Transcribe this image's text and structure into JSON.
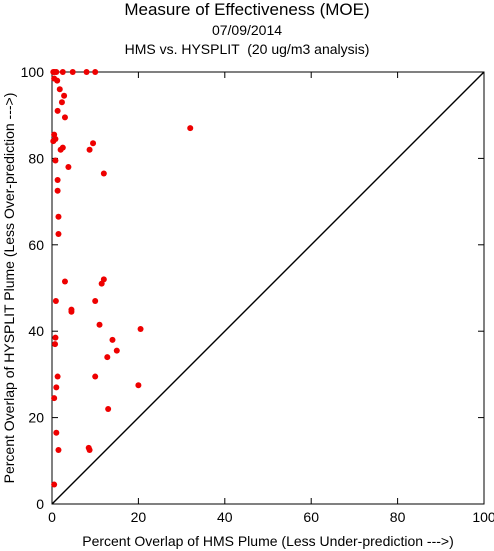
{
  "chart_data": {
    "type": "scatter",
    "title": "Measure of Effectiveness (MOE)",
    "subtitle_date": "07/09/2014",
    "subtitle": "HMS vs. HYSPLIT  (20 ug/m3 analysis)",
    "xlabel": "Percent Overlap of HMS Plume (Less Under-prediction --->)",
    "ylabel": "Percent Overlap of HYSPLIT Plume (Less Over-prediction --->)",
    "xlim": [
      0,
      100
    ],
    "ylim": [
      0,
      100
    ],
    "xticks": [
      "0",
      "20",
      "40",
      "60",
      "80",
      "100"
    ],
    "yticks": [
      "0",
      "20",
      "40",
      "60",
      "80",
      "100"
    ],
    "reference_line": "y = x",
    "point_color": "#ee0000",
    "line_color": "#000000",
    "points": [
      {
        "x": 0.3,
        "y": 100
      },
      {
        "x": 0.6,
        "y": 100
      },
      {
        "x": 1.0,
        "y": 100
      },
      {
        "x": 2.5,
        "y": 100
      },
      {
        "x": 4.8,
        "y": 100
      },
      {
        "x": 8.0,
        "y": 100
      },
      {
        "x": 10.0,
        "y": 100
      },
      {
        "x": 0.5,
        "y": 98.5
      },
      {
        "x": 1.2,
        "y": 98
      },
      {
        "x": 1.8,
        "y": 96
      },
      {
        "x": 2.8,
        "y": 94.5
      },
      {
        "x": 2.3,
        "y": 93
      },
      {
        "x": 1.3,
        "y": 91
      },
      {
        "x": 3.0,
        "y": 89.5
      },
      {
        "x": 32.0,
        "y": 87
      },
      {
        "x": 0.5,
        "y": 85.5
      },
      {
        "x": 0.8,
        "y": 84.5
      },
      {
        "x": 0.3,
        "y": 84
      },
      {
        "x": 9.5,
        "y": 83.5
      },
      {
        "x": 2.5,
        "y": 82.5
      },
      {
        "x": 2.0,
        "y": 82
      },
      {
        "x": 8.7,
        "y": 82
      },
      {
        "x": 0.8,
        "y": 79.5
      },
      {
        "x": 3.8,
        "y": 78
      },
      {
        "x": 12.0,
        "y": 76.5
      },
      {
        "x": 1.3,
        "y": 75
      },
      {
        "x": 1.3,
        "y": 72.5
      },
      {
        "x": 1.5,
        "y": 66.5
      },
      {
        "x": 1.5,
        "y": 62.5
      },
      {
        "x": 12.0,
        "y": 52
      },
      {
        "x": 11.5,
        "y": 51
      },
      {
        "x": 3.0,
        "y": 51.5
      },
      {
        "x": 0.9,
        "y": 47
      },
      {
        "x": 10.0,
        "y": 47
      },
      {
        "x": 4.5,
        "y": 45
      },
      {
        "x": 4.5,
        "y": 44.5
      },
      {
        "x": 11.0,
        "y": 41.5
      },
      {
        "x": 20.5,
        "y": 40.5
      },
      {
        "x": 0.8,
        "y": 38.5
      },
      {
        "x": 0.7,
        "y": 37
      },
      {
        "x": 14.0,
        "y": 38
      },
      {
        "x": 15.0,
        "y": 35.5
      },
      {
        "x": 12.8,
        "y": 34
      },
      {
        "x": 1.3,
        "y": 29.5
      },
      {
        "x": 10.0,
        "y": 29.5
      },
      {
        "x": 1.0,
        "y": 27
      },
      {
        "x": 20.0,
        "y": 27.5
      },
      {
        "x": 0.5,
        "y": 24.5
      },
      {
        "x": 13.0,
        "y": 22
      },
      {
        "x": 1.0,
        "y": 16.5
      },
      {
        "x": 1.5,
        "y": 12.5
      },
      {
        "x": 8.5,
        "y": 13
      },
      {
        "x": 8.7,
        "y": 12.5
      },
      {
        "x": 0.5,
        "y": 4.5
      }
    ]
  }
}
